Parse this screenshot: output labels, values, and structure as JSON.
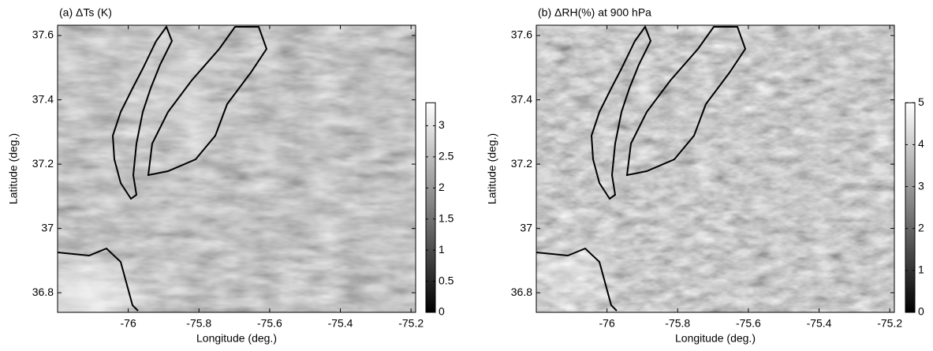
{
  "chart_data": [
    {
      "type": "heatmap",
      "title": "(a) ΔTs (K)",
      "xlabel": "Longitude (deg.)",
      "ylabel": "Latitude (deg.)",
      "xlim": [
        -76.2,
        -75.187
      ],
      "ylim": [
        36.739,
        37.632
      ],
      "xticks": [
        -76,
        -75.8,
        -75.6,
        -75.4,
        -75.2
      ],
      "yticks": [
        36.8,
        37,
        37.2,
        37.4,
        37.6
      ],
      "colormap": "gray",
      "clim": [
        0,
        3.37
      ],
      "cticks": [
        0,
        0.5,
        1,
        1.5,
        2,
        2.5,
        3
      ]
    },
    {
      "type": "heatmap",
      "title": "(b) ΔRH(%) at 900 hPa",
      "xlabel": "Longitude (deg.)",
      "ylabel": "Latitude (deg.)",
      "xlim": [
        -76.2,
        -75.187
      ],
      "ylim": [
        36.739,
        37.632
      ],
      "xticks": [
        -76,
        -75.8,
        -75.6,
        -75.4,
        -75.2
      ],
      "yticks": [
        36.8,
        37,
        37.2,
        37.4,
        37.6
      ],
      "colormap": "gray",
      "clim": [
        0,
        5
      ],
      "cticks": [
        0,
        1,
        2,
        3,
        4,
        5
      ]
    }
  ]
}
